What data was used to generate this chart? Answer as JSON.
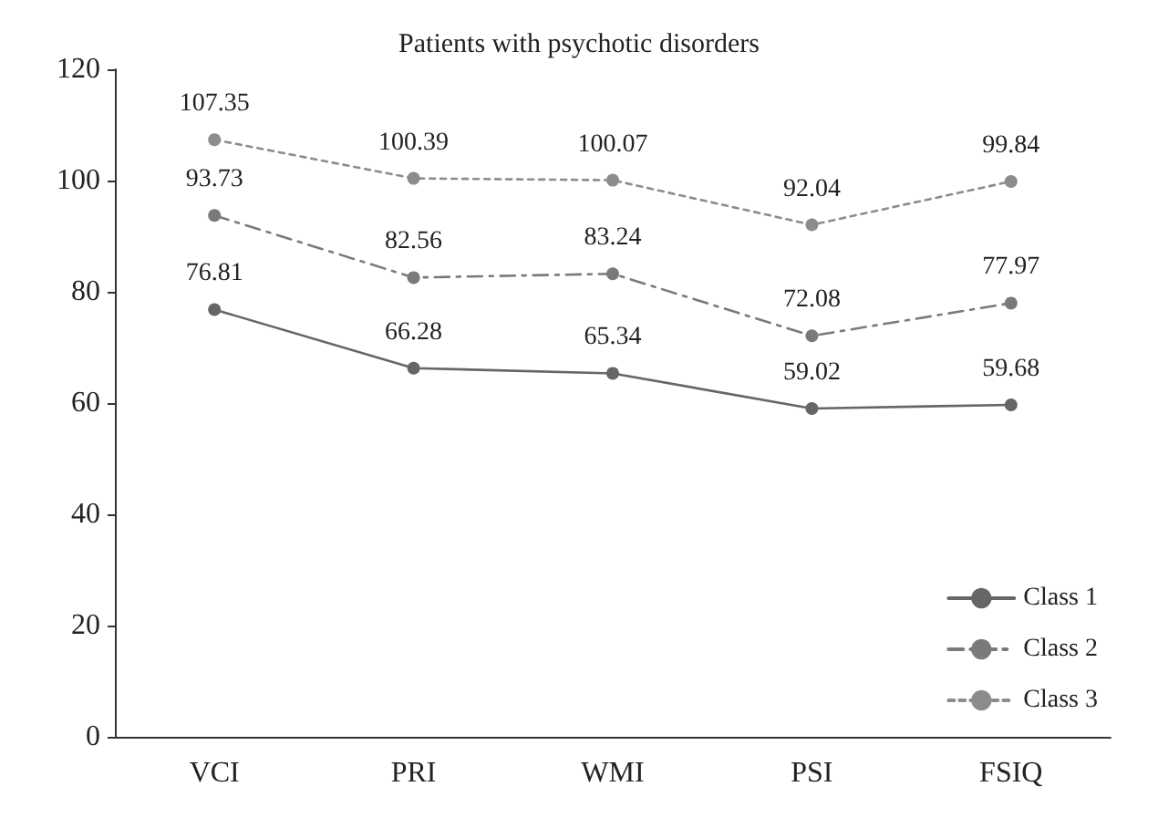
{
  "chart_data": {
    "type": "line",
    "title": "Patients with psychotic disorders",
    "categories": [
      "VCI",
      "PRI",
      "WMI",
      "PSI",
      "FSIQ"
    ],
    "series": [
      {
        "name": "Class 1",
        "color": "#666666",
        "line_style": "solid",
        "values": [
          76.81,
          66.28,
          65.34,
          59.02,
          59.68
        ]
      },
      {
        "name": "Class 2",
        "color": "#7a7a7a",
        "line_style": "dashed",
        "values": [
          93.73,
          82.56,
          83.24,
          72.08,
          77.97
        ]
      },
      {
        "name": "Class 3",
        "color": "#8c8c8c",
        "line_style": "dotted",
        "values": [
          107.35,
          100.39,
          100.07,
          92.04,
          99.84
        ]
      }
    ],
    "ylim": [
      0,
      120
    ],
    "yticks": [
      0,
      20,
      40,
      60,
      80,
      100,
      120
    ],
    "grid": false,
    "legend": "bottom right",
    "marker": "circle",
    "data_labels": true
  }
}
